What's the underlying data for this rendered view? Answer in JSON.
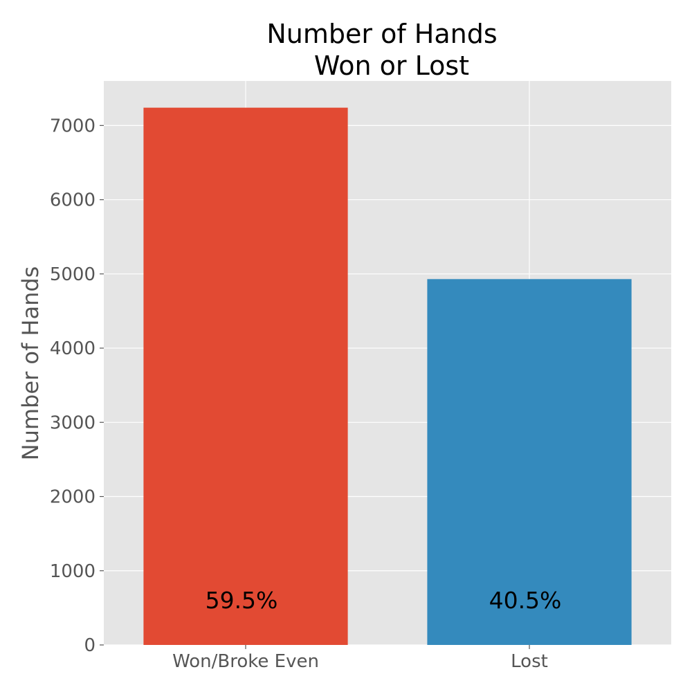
{
  "chart_data": {
    "type": "bar",
    "title_lines": [
      "Number of Hands",
      "Won or Lost"
    ],
    "xlabel": "",
    "ylabel": "Number of Hands",
    "categories": [
      "Won/Broke Even",
      "Lost"
    ],
    "values": [
      7240,
      4930
    ],
    "bar_labels": [
      "59.5%",
      "40.5%"
    ],
    "colors": [
      "#E24A33",
      "#348ABD"
    ],
    "ylim": [
      0,
      7600
    ],
    "yticks": [
      0,
      1000,
      2000,
      3000,
      4000,
      5000,
      6000,
      7000
    ],
    "grid": true,
    "background_color": "#E5E5E5",
    "grid_color": "#FFFFFF",
    "legend": "none"
  }
}
